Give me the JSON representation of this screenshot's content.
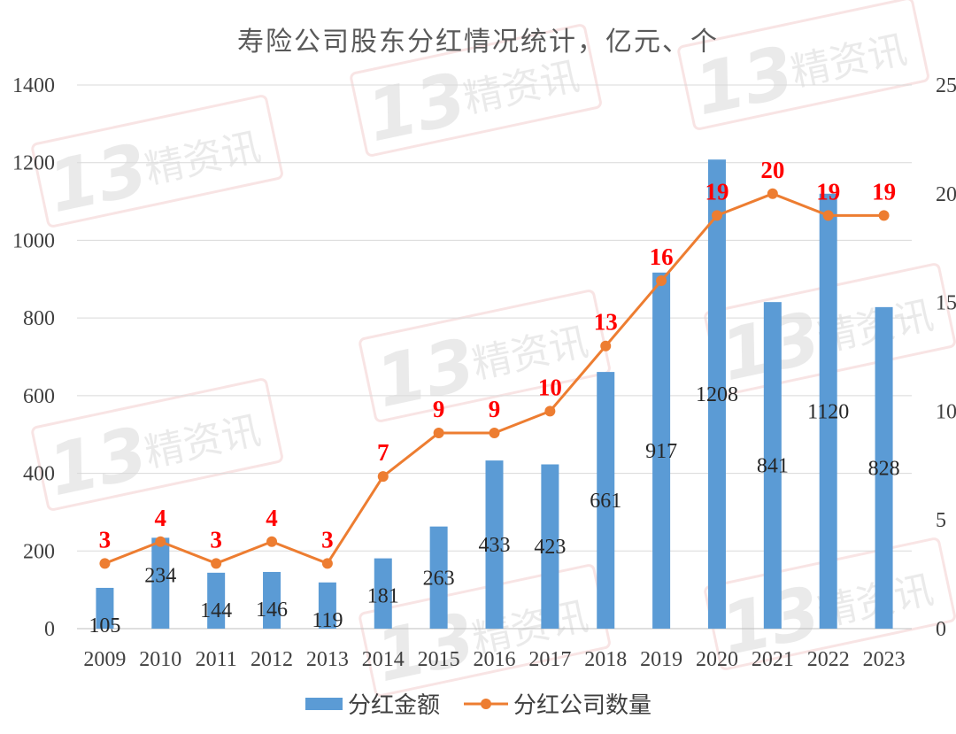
{
  "chart_data": {
    "type": "bar+line",
    "title": "寿险公司股东分红情况统计，亿元、个",
    "categories": [
      "2009",
      "2010",
      "2011",
      "2012",
      "2013",
      "2014",
      "2015",
      "2016",
      "2017",
      "2018",
      "2019",
      "2020",
      "2021",
      "2022",
      "2023"
    ],
    "series": [
      {
        "name": "分红金额",
        "type": "bar",
        "axis": "left",
        "color": "#5b9bd5",
        "values": [
          105,
          234,
          144,
          146,
          119,
          181,
          263,
          433,
          423,
          661,
          917,
          1208,
          841,
          1120,
          828
        ]
      },
      {
        "name": "分红公司数量",
        "type": "line",
        "axis": "right",
        "color": "#ed7d31",
        "values": [
          3,
          4,
          3,
          4,
          3,
          7,
          9,
          9,
          10,
          13,
          16,
          19,
          20,
          19,
          19
        ]
      }
    ],
    "left_axis": {
      "ylim": [
        0,
        1400
      ],
      "ticks": [
        "0",
        "200",
        "400",
        "600",
        "800",
        "1000",
        "1200",
        "1400"
      ]
    },
    "right_axis": {
      "ylim": [
        0,
        25
      ],
      "ticks": [
        "0",
        "5",
        "10",
        "15",
        "20",
        "25"
      ]
    },
    "grid": true,
    "legend": "bottom",
    "label_color": "#ff0000"
  },
  "watermark": {
    "text_number": "13",
    "text_cn": "精资讯"
  }
}
